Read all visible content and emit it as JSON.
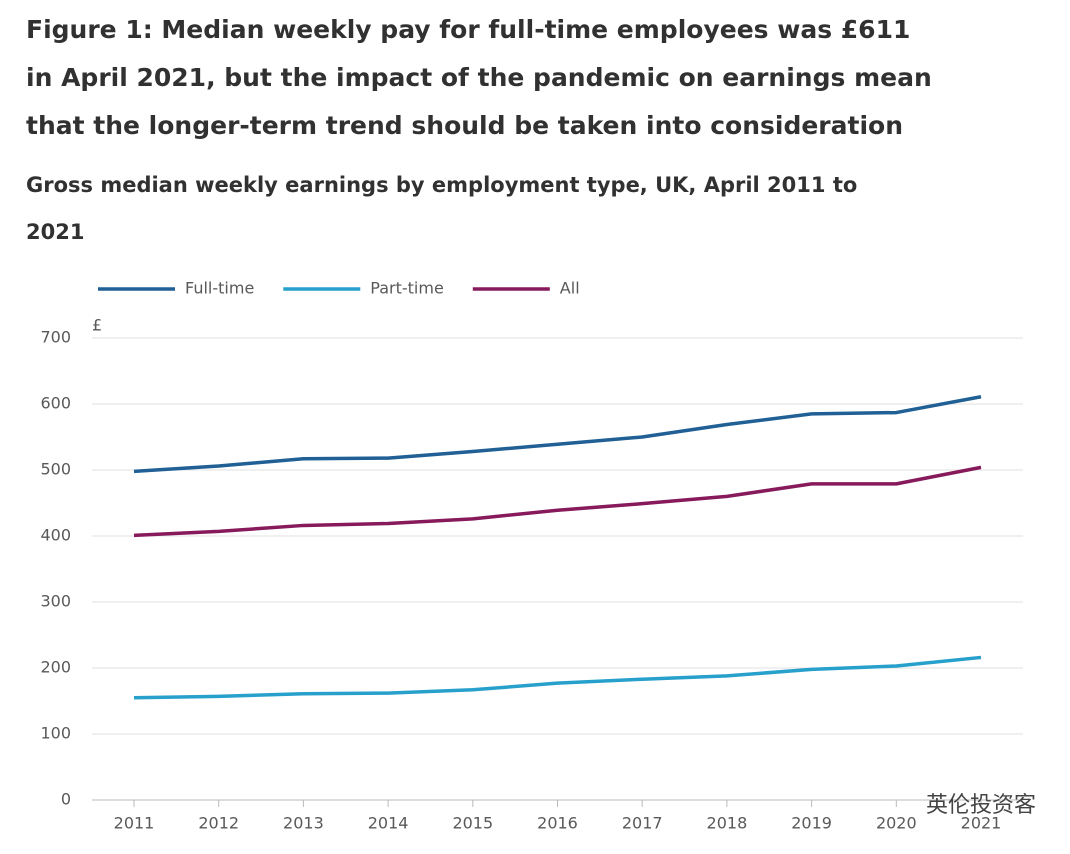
{
  "chart_data": {
    "type": "line",
    "title": "Figure 1: Median weekly pay for full-time employees was £611 in April 2021, but the impact of the pandemic on earnings mean that the longer-term trend should be taken into consideration",
    "subtitle": "Gross median weekly earnings by employment type, UK, April 2011 to 2021",
    "y_unit": "£",
    "categories": [
      "2011",
      "2012",
      "2013",
      "2014",
      "2015",
      "2016",
      "2017",
      "2018",
      "2019",
      "2020",
      "2021"
    ],
    "series": [
      {
        "name": "Full-time",
        "color": "#206095",
        "values": [
          498,
          506,
          517,
          518,
          528,
          539,
          550,
          569,
          585,
          587,
          611
        ]
      },
      {
        "name": "Part-time",
        "color": "#27a0cc",
        "values": [
          155,
          157,
          161,
          162,
          167,
          177,
          183,
          188,
          198,
          203,
          216
        ]
      },
      {
        "name": "All",
        "color": "#871a5b",
        "values": [
          401,
          407,
          416,
          419,
          426,
          439,
          449,
          460,
          479,
          479,
          504
        ]
      }
    ],
    "ylim": [
      0,
      700
    ],
    "yticks": [
      0,
      100,
      200,
      300,
      400,
      500,
      600,
      700
    ],
    "grid": true,
    "legend": "top",
    "watermark": "英伦投资客"
  }
}
